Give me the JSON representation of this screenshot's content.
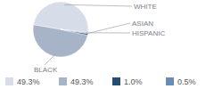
{
  "chart_data": {
    "type": "pie",
    "categories": [
      "WHITE",
      "BLACK",
      "ASIAN",
      "HISPANIC"
    ],
    "values": [
      49.3,
      49.3,
      1.0,
      0.5
    ],
    "value_labels": [
      "49.3%",
      "49.3%",
      "1.0%",
      "0.5%"
    ],
    "colors": [
      "#d6dde8",
      "#a7b4c8",
      "#264b75",
      "#6a8bb2"
    ],
    "data_labels": true
  }
}
